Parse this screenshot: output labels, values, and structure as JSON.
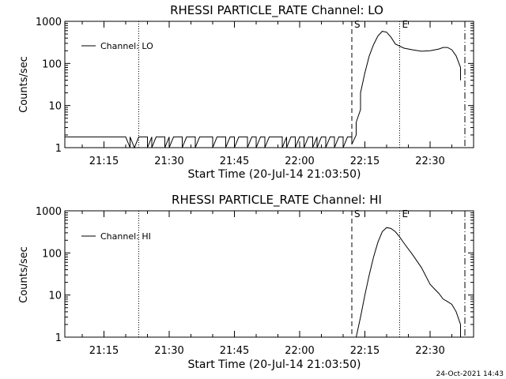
{
  "footer": {
    "timestamp": "24-Oct-2021 14:43"
  },
  "chart_data": [
    {
      "type": "line",
      "title": "RHESSI PARTICLE_RATE Channel: LO",
      "xlabel": "Start Time (20-Jul-14 21:03:50)",
      "ylabel": "Counts/sec",
      "y_scale": "log",
      "xlim": [
        "21:06",
        "22:40"
      ],
      "ylim": [
        1,
        1000
      ],
      "x_ticks": [
        "21:15",
        "21:30",
        "21:45",
        "22:00",
        "22:15",
        "22:30"
      ],
      "y_ticks": [
        "1",
        "10",
        "100",
        "1000"
      ],
      "legend": {
        "position": "top-left",
        "entries": [
          "Channel: LO"
        ]
      },
      "markers": [
        {
          "label": "",
          "time": "21:06",
          "style": "solid"
        },
        {
          "label": "",
          "time": "21:23",
          "style": "dotted"
        },
        {
          "label": "S",
          "time": "22:12",
          "style": "dashed"
        },
        {
          "label": "E",
          "time": "22:23",
          "style": "dotted"
        },
        {
          "label": "",
          "time": "22:38",
          "style": "dashdot"
        }
      ],
      "series": [
        {
          "name": "Channel: LO",
          "x": [
            "21:06",
            "21:20",
            "21:21",
            "21:21",
            "21:22",
            "21:23",
            "21:24",
            "21:25",
            "21:25",
            "21:26",
            "21:26",
            "21:27",
            "21:28",
            "21:29",
            "21:29",
            "21:30",
            "21:30",
            "21:31",
            "21:32",
            "21:33",
            "21:33",
            "21:34",
            "21:35",
            "21:36",
            "21:36",
            "21:37",
            "21:38",
            "21:39",
            "21:40",
            "21:40",
            "21:41",
            "21:42",
            "21:43",
            "21:43",
            "21:44",
            "21:45",
            "21:45",
            "21:46",
            "21:47",
            "21:48",
            "21:48",
            "21:49",
            "21:50",
            "21:50",
            "21:51",
            "21:52",
            "21:52",
            "21:53",
            "21:54",
            "21:55",
            "21:56",
            "21:56",
            "21:57",
            "21:57",
            "21:58",
            "21:59",
            "21:59",
            "22:00",
            "22:01",
            "22:01",
            "22:02",
            "22:03",
            "22:03",
            "22:04",
            "22:04",
            "22:05",
            "22:06",
            "22:06",
            "22:07",
            "22:08",
            "22:08",
            "22:09",
            "22:10",
            "22:10",
            "22:11",
            "22:12",
            "22:12",
            "22:13",
            "22:13",
            "22:14",
            "22:14",
            "22:15",
            "22:16",
            "22:17",
            "22:18",
            "22:19",
            "22:20",
            "22:21",
            "22:22",
            "22:24",
            "22:26",
            "22:28",
            "22:30",
            "22:32",
            "22:33",
            "22:34",
            "22:35",
            "22:36",
            "22:37",
            "22:37"
          ],
          "values": [
            1.8,
            1.8,
            1,
            1.8,
            1,
            1.8,
            1.8,
            1.8,
            1,
            1.8,
            1,
            1.8,
            1.8,
            1.8,
            1,
            1.8,
            1,
            1.8,
            1.8,
            1.8,
            1,
            1.8,
            1.8,
            1.8,
            1,
            1.8,
            1.8,
            1.8,
            1.8,
            1,
            1.8,
            1.8,
            1.8,
            1,
            1.8,
            1.8,
            1,
            1.8,
            1.8,
            1.8,
            1,
            1.8,
            1.8,
            1,
            1.8,
            1.8,
            1,
            1.8,
            1.8,
            1.8,
            1.8,
            1,
            1.8,
            1,
            1.8,
            1.8,
            1,
            1.8,
            1.8,
            1,
            1.8,
            1.8,
            1,
            1.8,
            1,
            1.8,
            1.8,
            1,
            1.8,
            1.8,
            1,
            1.8,
            1.8,
            1,
            1.8,
            1.8,
            1.2,
            2,
            4,
            8,
            20,
            60,
            150,
            280,
            450,
            580,
            550,
            420,
            290,
            230,
            210,
            195,
            200,
            220,
            240,
            240,
            210,
            150,
            80,
            40
          ]
        }
      ]
    },
    {
      "type": "line",
      "title": "RHESSI PARTICLE_RATE Channel: HI",
      "xlabel": "Start Time (20-Jul-14 21:03:50)",
      "ylabel": "Counts/sec",
      "y_scale": "log",
      "xlim": [
        "21:06",
        "22:40"
      ],
      "ylim": [
        1,
        1000
      ],
      "x_ticks": [
        "21:15",
        "21:30",
        "21:45",
        "22:00",
        "22:15",
        "22:30"
      ],
      "y_ticks": [
        "1",
        "10",
        "100",
        "1000"
      ],
      "legend": {
        "position": "top-left",
        "entries": [
          "Channel: HI"
        ]
      },
      "markers": [
        {
          "label": "",
          "time": "21:06",
          "style": "solid"
        },
        {
          "label": "",
          "time": "21:23",
          "style": "dotted"
        },
        {
          "label": "S",
          "time": "22:12",
          "style": "dashed"
        },
        {
          "label": "E",
          "time": "22:23",
          "style": "dotted"
        },
        {
          "label": "",
          "time": "22:38",
          "style": "dashdot"
        }
      ],
      "series": [
        {
          "name": "Channel: HI",
          "x": [
            "22:13",
            "22:14",
            "22:15",
            "22:16",
            "22:17",
            "22:18",
            "22:19",
            "22:20",
            "22:21",
            "22:22",
            "22:23",
            "22:24",
            "22:26",
            "22:28",
            "22:30",
            "22:31",
            "22:32",
            "22:33",
            "22:34",
            "22:35",
            "22:36",
            "22:37",
            "22:37"
          ],
          "values": [
            1,
            3,
            10,
            30,
            80,
            180,
            320,
            400,
            380,
            320,
            240,
            170,
            90,
            45,
            18,
            14,
            11,
            8,
            7,
            6,
            4,
            2,
            1
          ]
        }
      ]
    }
  ]
}
